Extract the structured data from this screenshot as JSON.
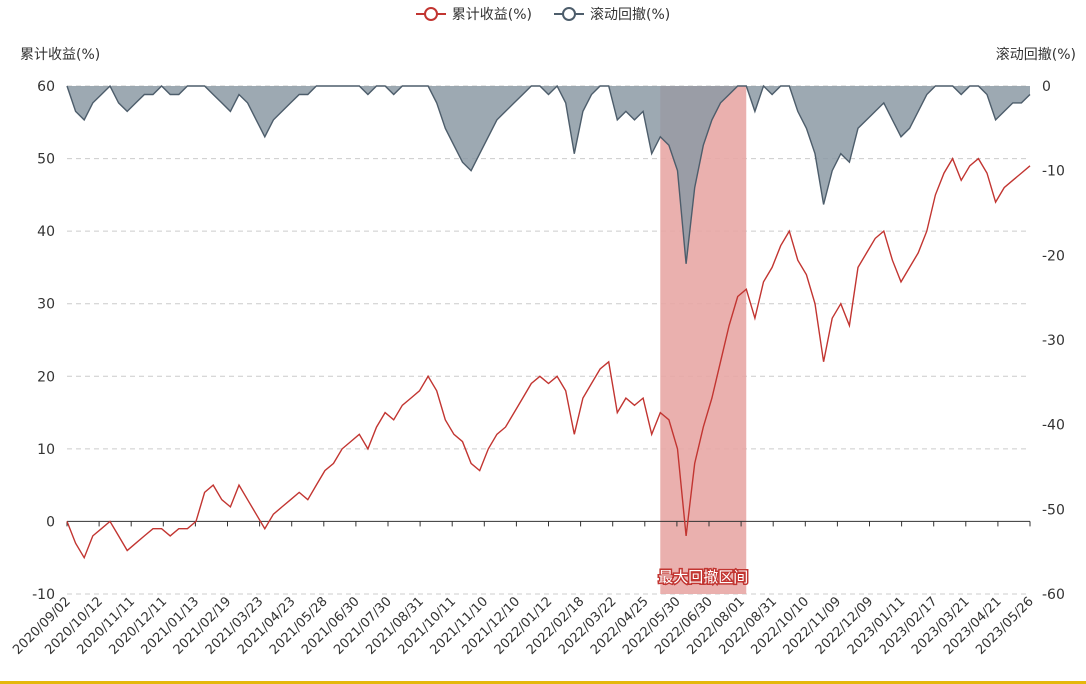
{
  "chart_data": {
    "type": "line",
    "legend": [
      "累计收益(%)",
      "滚动回撤(%)"
    ],
    "ylabel_left": "累计收益(%)",
    "ylabel_right": "滚动回撤(%)",
    "ylim_left": [
      -10,
      60
    ],
    "ylim_right": [
      -60,
      0
    ],
    "yticks_left": [
      "60",
      "50",
      "40",
      "30",
      "20",
      "10",
      "0",
      "-10"
    ],
    "yticks_right": [
      "0",
      "-10",
      "-20",
      "-30",
      "-40",
      "-50",
      "-60"
    ],
    "grid": "dashed horizontal",
    "x_labels": [
      "2020/09/02",
      "2020/10/12",
      "2020/11/11",
      "2020/12/11",
      "2021/01/13",
      "2021/02/19",
      "2021/03/23",
      "2021/04/23",
      "2021/05/28",
      "2021/06/30",
      "2021/07/30",
      "2021/08/31",
      "2021/10/11",
      "2021/11/10",
      "2021/12/10",
      "2022/01/12",
      "2022/02/18",
      "2022/03/22",
      "2022/04/25",
      "2022/05/30",
      "2022/06/30",
      "2022/08/01",
      "2022/08/31",
      "2022/10/10",
      "2022/11/09",
      "2022/12/09",
      "2023/01/11",
      "2023/02/17",
      "2023/03/21",
      "2023/04/21",
      "2023/05/26"
    ],
    "series": [
      {
        "name": "累计收益(%)",
        "color": "#c23531",
        "axis": "left",
        "values": [
          0,
          -3,
          -5,
          -2,
          -1,
          0,
          -2,
          -4,
          -3,
          -2,
          -1,
          -1,
          -2,
          -1,
          -1,
          0,
          4,
          5,
          3,
          2,
          5,
          3,
          1,
          -1,
          1,
          2,
          3,
          4,
          3,
          5,
          7,
          8,
          10,
          11,
          12,
          10,
          13,
          15,
          14,
          16,
          17,
          18,
          20,
          18,
          14,
          12,
          11,
          8,
          7,
          10,
          12,
          13,
          15,
          17,
          19,
          20,
          19,
          20,
          18,
          12,
          17,
          19,
          21,
          22,
          15,
          17,
          16,
          17,
          12,
          15,
          14,
          10,
          -2,
          8,
          13,
          17,
          22,
          27,
          31,
          32,
          28,
          33,
          35,
          38,
          40,
          36,
          34,
          30,
          22,
          28,
          30,
          27,
          35,
          37,
          39,
          40,
          36,
          33,
          35,
          37,
          40,
          45,
          48,
          50,
          47,
          49,
          50,
          48,
          44,
          46,
          47,
          48,
          49
        ]
      },
      {
        "name": "滚动回撤(%)",
        "color": "#4d5d6b",
        "axis": "right",
        "values": [
          0,
          -3,
          -4,
          -2,
          -1,
          0,
          -2,
          -3,
          -2,
          -1,
          -1,
          0,
          -1,
          -1,
          0,
          0,
          0,
          -1,
          -2,
          -3,
          -1,
          -2,
          -4,
          -6,
          -4,
          -3,
          -2,
          -1,
          -1,
          0,
          0,
          0,
          0,
          0,
          0,
          -1,
          0,
          0,
          -1,
          0,
          0,
          0,
          0,
          -2,
          -5,
          -7,
          -9,
          -10,
          -8,
          -6,
          -4,
          -3,
          -2,
          -1,
          0,
          0,
          -1,
          0,
          -2,
          -8,
          -3,
          -1,
          0,
          0,
          -4,
          -3,
          -4,
          -3,
          -8,
          -6,
          -7,
          -10,
          -21,
          -12,
          -7,
          -4,
          -2,
          -1,
          0,
          0,
          -3,
          0,
          -1,
          0,
          0,
          -3,
          -5,
          -8,
          -14,
          -10,
          -8,
          -9,
          -5,
          -4,
          -3,
          -2,
          -4,
          -6,
          -5,
          -3,
          -1,
          0,
          0,
          0,
          -1,
          0,
          0,
          -1,
          -4,
          -3,
          -2,
          -2,
          -1
        ]
      }
    ],
    "annotation": {
      "label": "最大回撤区间",
      "start_index": 69,
      "end_index": 79,
      "color": "#e8a7a5"
    }
  }
}
